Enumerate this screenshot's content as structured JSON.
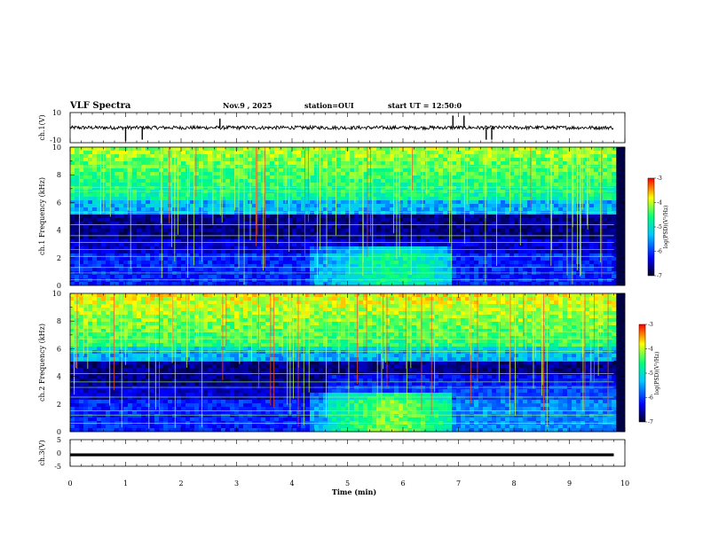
{
  "header": {
    "title": "VLF Spectra",
    "date": "Nov.9 , 2025",
    "station": "station=OUI",
    "start_ut": "start UT = 12:50:0"
  },
  "colors": {
    "waveform": "#000000",
    "colormap": [
      "#000022",
      "#0000ff",
      "#00c8ff",
      "#00ff80",
      "#ffff00",
      "#ff0000"
    ]
  },
  "chart_data": [
    {
      "type": "line",
      "name": "ch1-waveform",
      "ylabel": "ch.1(V)",
      "ylim": [
        -10,
        10
      ],
      "ytick_labels": [
        "10",
        "-10"
      ],
      "baseline": 0,
      "spikes": [
        {
          "t": 1.0,
          "v": -9
        },
        {
          "t": 1.3,
          "v": -8
        },
        {
          "t": 2.7,
          "v": 6
        },
        {
          "t": 6.9,
          "v": 8
        },
        {
          "t": 7.1,
          "v": 8
        },
        {
          "t": 7.5,
          "v": -8
        },
        {
          "t": 7.6,
          "v": -8
        }
      ]
    },
    {
      "type": "heatmap",
      "name": "ch1-spectrogram",
      "ylabel": "ch.1 Frequency (kHz)",
      "ylim": [
        0,
        10
      ],
      "ytick_labels": [
        "0",
        "2",
        "4",
        "6",
        "8",
        "10"
      ],
      "colorbar": {
        "label": "log(PSD)(V²/Hz)",
        "range": [
          -7,
          -3
        ],
        "tick_labels": [
          "-3",
          "-4",
          "-5",
          "-6",
          "-7"
        ]
      }
    },
    {
      "type": "heatmap",
      "name": "ch2-spectrogram",
      "ylabel": "ch.2 Frequency (kHz)",
      "ylim": [
        0,
        10
      ],
      "ytick_labels": [
        "0",
        "2",
        "4",
        "6",
        "8",
        "10"
      ],
      "colorbar": {
        "label": "log(PSD)(V²/Hz)",
        "range": [
          -7,
          -3
        ],
        "tick_labels": [
          "-3",
          "-4",
          "-5",
          "-6",
          "-7"
        ]
      }
    },
    {
      "type": "line",
      "name": "ch3-waveform",
      "ylabel": "ch.3(V)",
      "ylim": [
        -5,
        5
      ],
      "ytick_labels": [
        "5",
        "0",
        "-5"
      ],
      "baseline": -0.7
    }
  ],
  "xaxis": {
    "label": "Time (min)",
    "range": [
      0,
      10
    ],
    "tick_labels": [
      "0",
      "1",
      "2",
      "3",
      "4",
      "5",
      "6",
      "7",
      "8",
      "9",
      "10"
    ],
    "data_end": 9.8
  }
}
